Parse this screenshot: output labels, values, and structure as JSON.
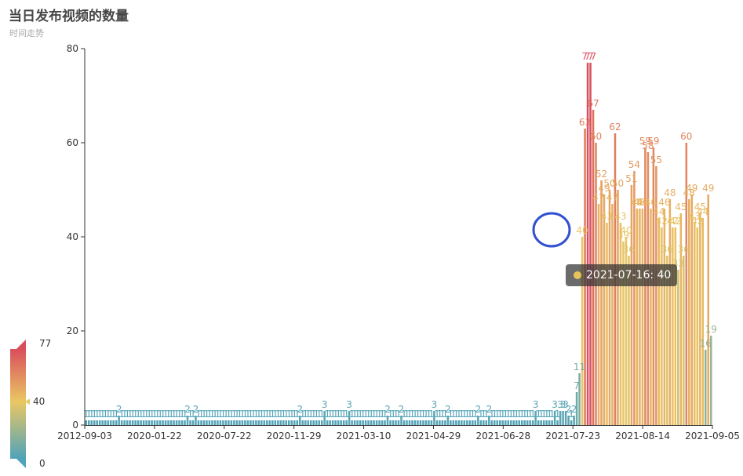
{
  "title": "当日发布视频的数量",
  "subtitle": "时间走势",
  "tooltip": {
    "text": "2021-07-16: 40",
    "color": "#e8c15a"
  },
  "visual_map": {
    "min_label": "0",
    "max_label": "77",
    "current_label": "40",
    "colors": [
      "#50a3ba",
      "#eac763",
      "#d94e5d"
    ]
  },
  "highlight_circle_color": "#3350d1",
  "chart_data": {
    "type": "bar",
    "title": "当日发布视频的数量",
    "subtitle": "时间走势",
    "xlabel": "",
    "ylabel": "",
    "ylim": [
      0,
      80
    ],
    "yticks": [
      0,
      20,
      40,
      60,
      80
    ],
    "x_tick_labels": [
      "2012-09-03",
      "2020-01-22",
      "2020-07-22",
      "2020-11-29",
      "2021-03-10",
      "2021-04-29",
      "2021-06-28",
      "2021-07-23",
      "2021-08-14",
      "2021-09-05"
    ],
    "grid": false,
    "legend": "none",
    "values": [
      1,
      1,
      1,
      1,
      1,
      1,
      1,
      1,
      1,
      1,
      1,
      1,
      2,
      1,
      1,
      1,
      1,
      1,
      1,
      1,
      1,
      1,
      1,
      1,
      1,
      1,
      1,
      1,
      1,
      1,
      1,
      1,
      1,
      1,
      1,
      1,
      1,
      2,
      1,
      1,
      2,
      1,
      1,
      1,
      1,
      1,
      1,
      1,
      1,
      1,
      1,
      1,
      1,
      1,
      1,
      1,
      1,
      1,
      1,
      1,
      1,
      1,
      1,
      1,
      1,
      1,
      1,
      1,
      1,
      1,
      1,
      1,
      1,
      1,
      1,
      1,
      1,
      1,
      2,
      1,
      1,
      1,
      1,
      1,
      1,
      1,
      1,
      3,
      1,
      1,
      1,
      1,
      1,
      1,
      1,
      1,
      3,
      1,
      1,
      1,
      1,
      1,
      1,
      1,
      1,
      1,
      1,
      1,
      1,
      1,
      2,
      1,
      1,
      1,
      1,
      2,
      1,
      1,
      1,
      1,
      1,
      1,
      1,
      1,
      1,
      1,
      1,
      3,
      1,
      1,
      1,
      1,
      2,
      1,
      1,
      1,
      1,
      1,
      1,
      1,
      1,
      1,
      1,
      2,
      1,
      1,
      1,
      2,
      1,
      1,
      1,
      1,
      1,
      1,
      1,
      1,
      1,
      1,
      1,
      1,
      1,
      1,
      1,
      1,
      3,
      1,
      1,
      1,
      1,
      1,
      1,
      3,
      1,
      3,
      3,
      3,
      2,
      1,
      2,
      7,
      11,
      40,
      63,
      77,
      77,
      67,
      60,
      47,
      52,
      49,
      43,
      50,
      47,
      62,
      50,
      43,
      39,
      40,
      36,
      51,
      54,
      46,
      46,
      46,
      59,
      58,
      46,
      59,
      55,
      44,
      42,
      46,
      36,
      48,
      42,
      42,
      33,
      45,
      36,
      60,
      48,
      49,
      43,
      42,
      45,
      44,
      16,
      49,
      19
    ]
  }
}
